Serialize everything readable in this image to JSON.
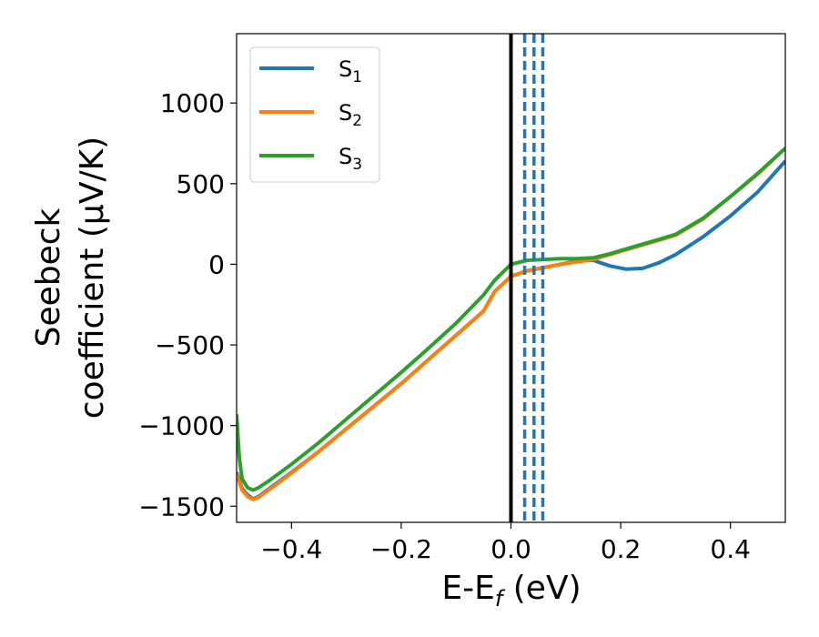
{
  "chart_data": {
    "type": "line",
    "xlabel": "E-E",
    "xlabel_sub": "f",
    "xlabel_unit": " (eV)",
    "ylabel_line1": "Seebeck",
    "ylabel_line2": "coefficient  (μV/K)",
    "xlim": [
      -0.5,
      0.5
    ],
    "ylim": [
      -1600,
      1430
    ],
    "xticks": [
      -0.4,
      -0.2,
      0.0,
      0.2,
      0.4
    ],
    "xtick_labels": [
      "−0.4",
      "−0.2",
      "0.0",
      "0.2",
      "0.4"
    ],
    "yticks": [
      -1500,
      -1000,
      -500,
      0,
      500,
      1000
    ],
    "ytick_labels": [
      "−1500",
      "−1000",
      "−500",
      "0",
      "500",
      "1000"
    ],
    "legend_position": "top-left",
    "fermi_level": 0.0,
    "dashed_lines": [
      0.025,
      0.042,
      0.058
    ],
    "series": [
      {
        "name": "S",
        "sub": "1",
        "color": "#1f77b4",
        "points": [
          [
            -0.5,
            -1290
          ],
          [
            -0.49,
            -1390
          ],
          [
            -0.48,
            -1430
          ],
          [
            -0.47,
            -1455
          ],
          [
            -0.46,
            -1440
          ],
          [
            -0.44,
            -1390
          ],
          [
            -0.4,
            -1290
          ],
          [
            -0.35,
            -1160
          ],
          [
            -0.3,
            -1020
          ],
          [
            -0.25,
            -880
          ],
          [
            -0.2,
            -740
          ],
          [
            -0.15,
            -590
          ],
          [
            -0.1,
            -440
          ],
          [
            -0.05,
            -290
          ],
          [
            -0.03,
            -170
          ],
          [
            0.0,
            -75
          ],
          [
            0.03,
            -40
          ],
          [
            0.06,
            -20
          ],
          [
            0.09,
            0
          ],
          [
            0.12,
            20
          ],
          [
            0.15,
            25
          ],
          [
            0.18,
            -10
          ],
          [
            0.21,
            -30
          ],
          [
            0.24,
            -25
          ],
          [
            0.27,
            10
          ],
          [
            0.3,
            60
          ],
          [
            0.35,
            170
          ],
          [
            0.4,
            300
          ],
          [
            0.45,
            450
          ],
          [
            0.5,
            640
          ]
        ]
      },
      {
        "name": "S",
        "sub": "2",
        "color": "#ff7f0e",
        "points": [
          [
            -0.5,
            -1300
          ],
          [
            -0.49,
            -1400
          ],
          [
            -0.48,
            -1440
          ],
          [
            -0.47,
            -1458
          ],
          [
            -0.46,
            -1445
          ],
          [
            -0.44,
            -1395
          ],
          [
            -0.4,
            -1295
          ],
          [
            -0.35,
            -1160
          ],
          [
            -0.3,
            -1020
          ],
          [
            -0.25,
            -880
          ],
          [
            -0.2,
            -740
          ],
          [
            -0.15,
            -590
          ],
          [
            -0.1,
            -440
          ],
          [
            -0.05,
            -290
          ],
          [
            -0.03,
            -170
          ],
          [
            0.0,
            -75
          ],
          [
            0.03,
            -40
          ],
          [
            0.06,
            -20
          ],
          [
            0.09,
            0
          ],
          [
            0.12,
            15
          ],
          [
            0.15,
            30
          ],
          [
            0.18,
            60
          ],
          [
            0.21,
            90
          ],
          [
            0.24,
            120
          ],
          [
            0.27,
            150
          ],
          [
            0.3,
            180
          ],
          [
            0.35,
            280
          ],
          [
            0.4,
            420
          ],
          [
            0.45,
            560
          ],
          [
            0.5,
            720
          ]
        ]
      },
      {
        "name": "S",
        "sub": "3",
        "color": "#2ca02c",
        "points": [
          [
            -0.5,
            -930
          ],
          [
            -0.495,
            -1200
          ],
          [
            -0.49,
            -1330
          ],
          [
            -0.48,
            -1385
          ],
          [
            -0.47,
            -1400
          ],
          [
            -0.46,
            -1385
          ],
          [
            -0.44,
            -1340
          ],
          [
            -0.4,
            -1240
          ],
          [
            -0.35,
            -1105
          ],
          [
            -0.3,
            -960
          ],
          [
            -0.25,
            -815
          ],
          [
            -0.2,
            -670
          ],
          [
            -0.15,
            -520
          ],
          [
            -0.1,
            -365
          ],
          [
            -0.05,
            -190
          ],
          [
            -0.03,
            -100
          ],
          [
            0.0,
            0
          ],
          [
            0.03,
            25
          ],
          [
            0.06,
            30
          ],
          [
            0.09,
            35
          ],
          [
            0.12,
            35
          ],
          [
            0.15,
            40
          ],
          [
            0.18,
            65
          ],
          [
            0.21,
            95
          ],
          [
            0.24,
            125
          ],
          [
            0.27,
            155
          ],
          [
            0.3,
            185
          ],
          [
            0.35,
            285
          ],
          [
            0.4,
            420
          ],
          [
            0.45,
            565
          ],
          [
            0.5,
            720
          ]
        ]
      }
    ]
  }
}
